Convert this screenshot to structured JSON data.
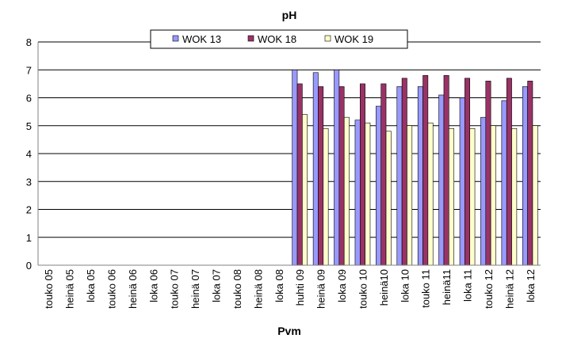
{
  "chart_data": {
    "type": "bar",
    "title": "pH",
    "xlabel": "Pvm",
    "ylabel": "",
    "ylim": [
      0,
      8
    ],
    "yticks": [
      "0",
      "1",
      "2",
      "3",
      "4",
      "5",
      "6",
      "7",
      "8"
    ],
    "grid": true,
    "legend_position": "top-center",
    "categories": [
      "touko 05",
      "heinä 05",
      "loka 05",
      "touko 06",
      "heinä 06",
      "loka 06",
      "touko 07",
      "heinä 07",
      "loka 07",
      "touko 08",
      "heinä 08",
      "loka 08",
      "huhti 09",
      "heinä 09",
      "loka 09",
      "touko 10",
      "heinä10",
      "loka 10",
      "touko 11",
      "heinä11",
      "loka 11",
      "touko 12",
      "heinä 12",
      "loka 12"
    ],
    "series": [
      {
        "name": "WOK 13",
        "color": "#9999ff",
        "values": [
          null,
          null,
          null,
          null,
          null,
          null,
          null,
          null,
          null,
          null,
          null,
          null,
          7.0,
          6.9,
          7.0,
          5.2,
          5.7,
          6.4,
          6.4,
          6.1,
          6.0,
          5.3,
          5.9,
          6.4
        ]
      },
      {
        "name": "WOK 18",
        "color": "#993366",
        "values": [
          null,
          null,
          null,
          null,
          null,
          null,
          null,
          null,
          null,
          null,
          null,
          null,
          6.5,
          6.4,
          6.4,
          6.5,
          6.5,
          6.7,
          6.8,
          6.8,
          6.7,
          6.6,
          6.7,
          6.6
        ]
      },
      {
        "name": "WOK 19",
        "color": "#ffffcc",
        "values": [
          null,
          null,
          null,
          null,
          null,
          null,
          null,
          null,
          null,
          null,
          null,
          null,
          5.4,
          4.9,
          5.3,
          5.1,
          4.8,
          5.0,
          5.1,
          4.9,
          4.9,
          5.0,
          4.9,
          5.0
        ]
      }
    ]
  }
}
